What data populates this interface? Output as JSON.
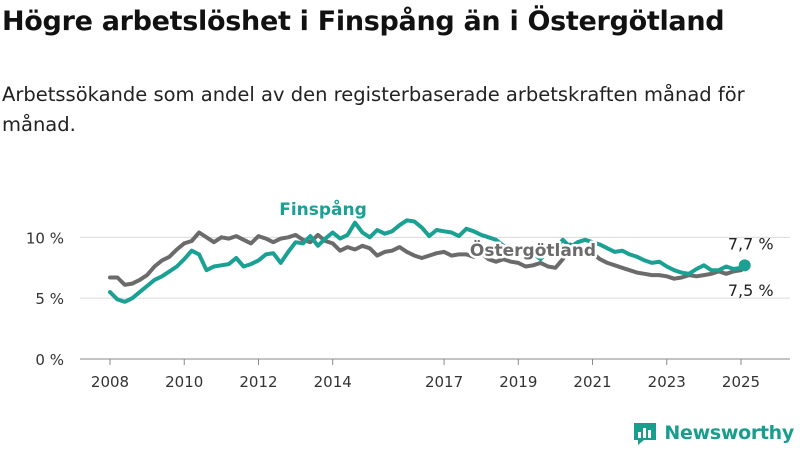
{
  "title": "Högre arbetslöshet i Finspång än i Östergötland",
  "subtitle": "Arbetssökande som andel av den registerbaserade arbetskraften månad för månad.",
  "brand": {
    "name": "Newsworthy",
    "icon": "bar-chart-icon",
    "color": "#199e8e"
  },
  "chart_data": {
    "type": "line",
    "ylim": [
      0,
      12
    ],
    "xlim": [
      2008.0,
      2025.85
    ],
    "y_ticks": [
      0,
      5,
      10
    ],
    "y_tick_labels": [
      "0 %",
      "5 %",
      "10 %"
    ],
    "x_ticks": [
      2008,
      2010,
      2012,
      2014,
      2017,
      2019,
      2021,
      2023,
      2025
    ],
    "x_tick_labels": [
      "2008",
      "2010",
      "2012",
      "2014",
      "2017",
      "2019",
      "2021",
      "2023",
      "2025"
    ],
    "grid": true,
    "series": [
      {
        "name": "Östergötland",
        "color": "#6b6b6b",
        "end_label": "7,5 %",
        "points": [
          [
            2008.0,
            6.7
          ],
          [
            2008.2,
            6.7
          ],
          [
            2008.4,
            6.1
          ],
          [
            2008.6,
            6.2
          ],
          [
            2008.8,
            6.5
          ],
          [
            2009.0,
            6.9
          ],
          [
            2009.2,
            7.6
          ],
          [
            2009.4,
            8.1
          ],
          [
            2009.6,
            8.4
          ],
          [
            2009.8,
            9.0
          ],
          [
            2010.0,
            9.5
          ],
          [
            2010.2,
            9.7
          ],
          [
            2010.4,
            10.4
          ],
          [
            2010.6,
            10.0
          ],
          [
            2010.8,
            9.6
          ],
          [
            2011.0,
            10.0
          ],
          [
            2011.2,
            9.9
          ],
          [
            2011.4,
            10.1
          ],
          [
            2011.6,
            9.8
          ],
          [
            2011.8,
            9.5
          ],
          [
            2012.0,
            10.1
          ],
          [
            2012.2,
            9.9
          ],
          [
            2012.4,
            9.6
          ],
          [
            2012.6,
            9.9
          ],
          [
            2012.8,
            10.0
          ],
          [
            2013.0,
            10.2
          ],
          [
            2013.2,
            9.8
          ],
          [
            2013.4,
            9.6
          ],
          [
            2013.6,
            10.2
          ],
          [
            2013.8,
            9.7
          ],
          [
            2014.0,
            9.5
          ],
          [
            2014.2,
            8.9
          ],
          [
            2014.4,
            9.2
          ],
          [
            2014.6,
            9.0
          ],
          [
            2014.8,
            9.3
          ],
          [
            2015.0,
            9.1
          ],
          [
            2015.2,
            8.5
          ],
          [
            2015.4,
            8.8
          ],
          [
            2015.6,
            8.9
          ],
          [
            2015.8,
            9.2
          ],
          [
            2016.0,
            8.8
          ],
          [
            2016.2,
            8.5
          ],
          [
            2016.4,
            8.3
          ],
          [
            2016.6,
            8.5
          ],
          [
            2016.8,
            8.7
          ],
          [
            2017.0,
            8.8
          ],
          [
            2017.2,
            8.5
          ],
          [
            2017.4,
            8.6
          ],
          [
            2017.6,
            8.6
          ],
          [
            2017.8,
            8.4
          ],
          [
            2018.0,
            8.7
          ],
          [
            2018.2,
            8.2
          ],
          [
            2018.4,
            8.0
          ],
          [
            2018.6,
            8.2
          ],
          [
            2018.8,
            8.0
          ],
          [
            2019.0,
            7.9
          ],
          [
            2019.2,
            7.6
          ],
          [
            2019.4,
            7.7
          ],
          [
            2019.6,
            7.9
          ],
          [
            2019.8,
            7.6
          ],
          [
            2020.0,
            7.5
          ],
          [
            2020.2,
            8.2
          ],
          [
            2020.4,
            9.4
          ],
          [
            2020.6,
            9.1
          ],
          [
            2020.8,
            8.7
          ],
          [
            2021.0,
            8.7
          ],
          [
            2021.2,
            8.2
          ],
          [
            2021.4,
            7.9
          ],
          [
            2021.6,
            7.7
          ],
          [
            2021.8,
            7.5
          ],
          [
            2022.0,
            7.3
          ],
          [
            2022.2,
            7.1
          ],
          [
            2022.4,
            7.0
          ],
          [
            2022.6,
            6.9
          ],
          [
            2022.8,
            6.9
          ],
          [
            2023.0,
            6.8
          ],
          [
            2023.2,
            6.6
          ],
          [
            2023.4,
            6.7
          ],
          [
            2023.6,
            6.9
          ],
          [
            2023.8,
            6.8
          ],
          [
            2024.0,
            6.9
          ],
          [
            2024.2,
            7.0
          ],
          [
            2024.4,
            7.2
          ],
          [
            2024.6,
            7.0
          ],
          [
            2024.8,
            7.2
          ],
          [
            2025.0,
            7.3
          ],
          [
            2025.1,
            7.5
          ]
        ]
      },
      {
        "name": "Finspång",
        "color": "#1aa194",
        "end_label": "7,7 %",
        "points": [
          [
            2008.0,
            5.5
          ],
          [
            2008.2,
            4.9
          ],
          [
            2008.4,
            4.7
          ],
          [
            2008.6,
            5.0
          ],
          [
            2008.8,
            5.5
          ],
          [
            2009.0,
            6.0
          ],
          [
            2009.2,
            6.5
          ],
          [
            2009.4,
            6.8
          ],
          [
            2009.6,
            7.2
          ],
          [
            2009.8,
            7.6
          ],
          [
            2010.0,
            8.2
          ],
          [
            2010.2,
            8.9
          ],
          [
            2010.4,
            8.6
          ],
          [
            2010.6,
            7.3
          ],
          [
            2010.8,
            7.6
          ],
          [
            2011.0,
            7.7
          ],
          [
            2011.2,
            7.8
          ],
          [
            2011.4,
            8.3
          ],
          [
            2011.6,
            7.6
          ],
          [
            2011.8,
            7.8
          ],
          [
            2012.0,
            8.1
          ],
          [
            2012.2,
            8.6
          ],
          [
            2012.4,
            8.7
          ],
          [
            2012.6,
            7.9
          ],
          [
            2012.8,
            8.8
          ],
          [
            2013.0,
            9.6
          ],
          [
            2013.2,
            9.5
          ],
          [
            2013.4,
            10.1
          ],
          [
            2013.6,
            9.3
          ],
          [
            2013.8,
            9.9
          ],
          [
            2014.0,
            10.4
          ],
          [
            2014.2,
            9.9
          ],
          [
            2014.4,
            10.2
          ],
          [
            2014.6,
            11.2
          ],
          [
            2014.8,
            10.4
          ],
          [
            2015.0,
            10.0
          ],
          [
            2015.2,
            10.6
          ],
          [
            2015.4,
            10.3
          ],
          [
            2015.6,
            10.5
          ],
          [
            2015.8,
            11.0
          ],
          [
            2016.0,
            11.4
          ],
          [
            2016.2,
            11.3
          ],
          [
            2016.4,
            10.8
          ],
          [
            2016.6,
            10.1
          ],
          [
            2016.8,
            10.6
          ],
          [
            2017.0,
            10.5
          ],
          [
            2017.2,
            10.4
          ],
          [
            2017.4,
            10.1
          ],
          [
            2017.6,
            10.7
          ],
          [
            2017.8,
            10.5
          ],
          [
            2018.0,
            10.2
          ],
          [
            2018.2,
            10.0
          ],
          [
            2018.4,
            9.8
          ],
          [
            2018.6,
            9.3
          ],
          [
            2018.8,
            9.1
          ],
          [
            2019.0,
            9.2
          ],
          [
            2019.2,
            8.7
          ],
          [
            2019.4,
            8.7
          ],
          [
            2019.6,
            8.2
          ],
          [
            2019.8,
            8.9
          ],
          [
            2020.0,
            9.1
          ],
          [
            2020.2,
            9.8
          ],
          [
            2020.4,
            9.2
          ],
          [
            2020.6,
            9.6
          ],
          [
            2020.8,
            9.8
          ],
          [
            2021.0,
            9.6
          ],
          [
            2021.2,
            9.4
          ],
          [
            2021.4,
            9.1
          ],
          [
            2021.6,
            8.8
          ],
          [
            2021.8,
            8.9
          ],
          [
            2022.0,
            8.6
          ],
          [
            2022.2,
            8.4
          ],
          [
            2022.4,
            8.1
          ],
          [
            2022.6,
            7.9
          ],
          [
            2022.8,
            8.0
          ],
          [
            2023.0,
            7.6
          ],
          [
            2023.2,
            7.3
          ],
          [
            2023.4,
            7.1
          ],
          [
            2023.6,
            7.0
          ],
          [
            2023.8,
            7.4
          ],
          [
            2024.0,
            7.7
          ],
          [
            2024.2,
            7.3
          ],
          [
            2024.4,
            7.3
          ],
          [
            2024.6,
            7.6
          ],
          [
            2024.8,
            7.4
          ],
          [
            2025.0,
            7.5
          ],
          [
            2025.1,
            7.7
          ]
        ]
      }
    ]
  }
}
